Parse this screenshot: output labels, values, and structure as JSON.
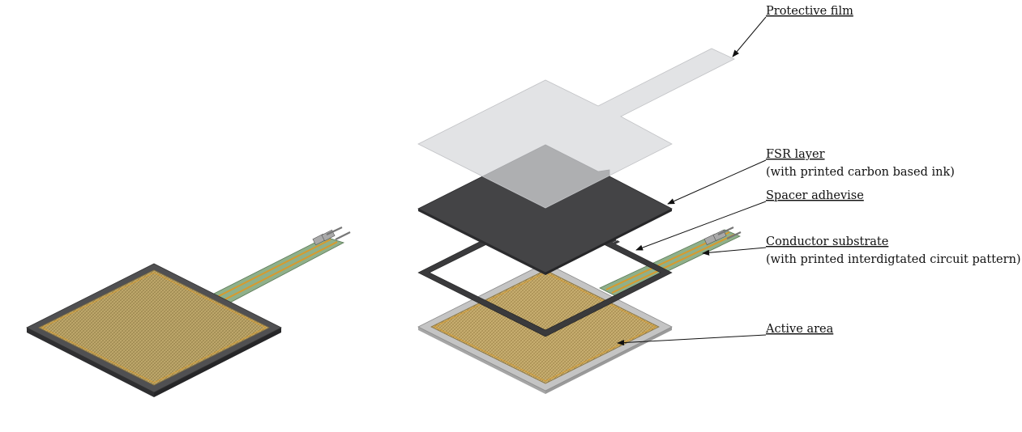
{
  "labels": {
    "protective_film": "Protective film",
    "fsr_layer": "FSR layer",
    "fsr_layer_note": "(with printed carbon based ink)",
    "spacer_adhesive": "Spacer adhevise",
    "conductor_substrate": "Conductor substrate",
    "conductor_substrate_note": "(with printed interdigtated circuit pattern)",
    "active_area": "Active area"
  },
  "colors": {
    "film": "#dcdddf",
    "fsr": "#3d3d3f",
    "spacer": "#3a3a3c",
    "substrate_border": "#bdbdbd",
    "active_area": "#b9a36a",
    "trace": "#d79a2e",
    "tail_green": "#8fb08a",
    "assembled_border": "#4f4f51",
    "leader": "#111111"
  }
}
